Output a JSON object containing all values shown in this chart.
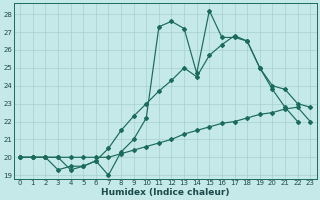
{
  "xlabel": "Humidex (Indice chaleur)",
  "background_color": "#c5e8e8",
  "grid_color": "#a8d0d0",
  "line_color": "#1a6b5a",
  "xlim": [
    -0.5,
    23.5
  ],
  "ylim": [
    18.8,
    28.6
  ],
  "yticks": [
    19,
    20,
    21,
    22,
    23,
    24,
    25,
    26,
    27,
    28
  ],
  "xticks": [
    0,
    1,
    2,
    3,
    4,
    5,
    6,
    7,
    8,
    9,
    10,
    11,
    12,
    13,
    14,
    15,
    16,
    17,
    18,
    19,
    20,
    21,
    22,
    23
  ],
  "line1_x": [
    0,
    1,
    2,
    3,
    4,
    5,
    6,
    7,
    8,
    9,
    10,
    11,
    12,
    13,
    14,
    15,
    16,
    17,
    18,
    19,
    20,
    21,
    22
  ],
  "line1_y": [
    20.0,
    20.0,
    20.0,
    19.3,
    19.5,
    19.5,
    19.8,
    19.0,
    20.3,
    21.0,
    22.2,
    27.3,
    27.6,
    27.2,
    24.7,
    28.2,
    26.7,
    26.7,
    26.5,
    25.0,
    23.8,
    22.8,
    22.0
  ],
  "line2_x": [
    0,
    1,
    2,
    3,
    4,
    5,
    6,
    7,
    8,
    9,
    10,
    11,
    12,
    13,
    14,
    15,
    16,
    17,
    18,
    19,
    20,
    21,
    22,
    23
  ],
  "line2_y": [
    20.0,
    20.0,
    20.0,
    20.0,
    19.3,
    19.5,
    19.8,
    20.5,
    21.5,
    22.3,
    23.0,
    23.7,
    24.3,
    25.0,
    24.5,
    25.7,
    26.3,
    26.8,
    26.5,
    25.0,
    24.0,
    23.8,
    23.0,
    22.8
  ],
  "line3_x": [
    0,
    1,
    2,
    3,
    4,
    5,
    6,
    7,
    8,
    9,
    10,
    11,
    12,
    13,
    14,
    15,
    16,
    17,
    18,
    19,
    20,
    21,
    22,
    23
  ],
  "line3_y": [
    20.0,
    20.0,
    20.0,
    20.0,
    20.0,
    20.0,
    20.0,
    20.0,
    20.2,
    20.4,
    20.6,
    20.8,
    21.0,
    21.3,
    21.5,
    21.7,
    21.9,
    22.0,
    22.2,
    22.4,
    22.5,
    22.7,
    22.8,
    22.0
  ]
}
